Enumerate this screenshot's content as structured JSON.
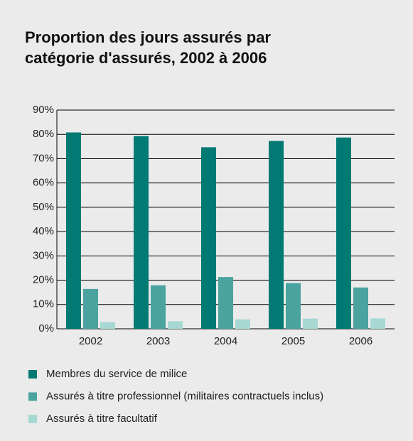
{
  "chart_data": {
    "type": "bar",
    "title": "Proportion des jours assurés par catégorie d'assurés, 2002 à 2006",
    "categories": [
      "2002",
      "2003",
      "2004",
      "2005",
      "2006"
    ],
    "series": [
      {
        "name": "Membres du service de milice",
        "color": "#007a73",
        "values": [
          80.8,
          79.3,
          74.7,
          77.3,
          78.7
        ]
      },
      {
        "name": "Assurés à titre professionnel (militaires contractuels inclus)",
        "color": "#4aa39f",
        "values": [
          16.4,
          17.9,
          21.3,
          18.8,
          17.0
        ]
      },
      {
        "name": "Assurés à titre facultatif",
        "color": "#a7d8d4",
        "values": [
          2.8,
          3.1,
          3.9,
          4.2,
          4.3
        ]
      }
    ],
    "ylim": [
      0,
      90
    ],
    "yticks": [
      {
        "value": 0,
        "label": "0%"
      },
      {
        "value": 10,
        "label": "10%"
      },
      {
        "value": 20,
        "label": "20%"
      },
      {
        "value": 30,
        "label": "30%"
      },
      {
        "value": 40,
        "label": "40%"
      },
      {
        "value": 50,
        "label": "50%"
      },
      {
        "value": 60,
        "label": "60%"
      },
      {
        "value": 70,
        "label": "70%"
      },
      {
        "value": 80,
        "label": "80%"
      },
      {
        "value": 90,
        "label": "90%"
      }
    ],
    "grid": true
  }
}
